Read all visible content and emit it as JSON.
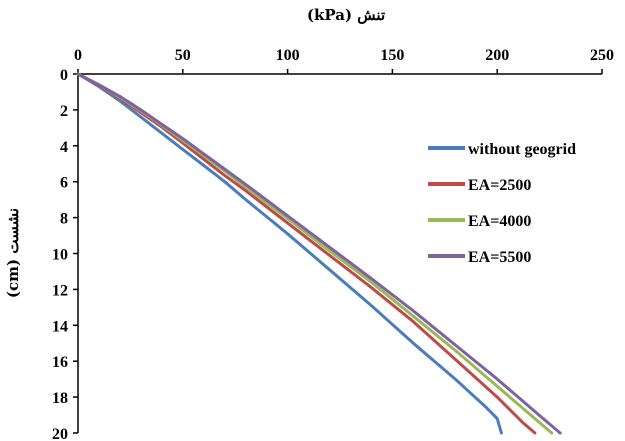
{
  "chart_data": {
    "type": "line",
    "xlabel": "تنش (kPa)",
    "ylabel": "نشست (cm)",
    "xlim": [
      0,
      250
    ],
    "ylim": [
      0,
      20
    ],
    "x_axis_position": "top",
    "y_axis_inverted": true,
    "xticks": [
      "0",
      "50",
      "100",
      "150",
      "200",
      "250"
    ],
    "yticks": [
      "0",
      "2",
      "4",
      "6",
      "8",
      "10",
      "12",
      "14",
      "16",
      "18",
      "20"
    ],
    "grid": false,
    "legend_position": "right",
    "series": [
      {
        "name": "without geogrid",
        "color": "#4a7ebb",
        "points": [
          [
            0,
            0
          ],
          [
            10,
            0.7
          ],
          [
            20,
            1.5
          ],
          [
            30,
            2.4
          ],
          [
            40,
            3.3
          ],
          [
            50,
            4.2
          ],
          [
            60,
            5.1
          ],
          [
            70,
            6.0
          ],
          [
            80,
            7.0
          ],
          [
            100,
            8.9
          ],
          [
            120,
            10.9
          ],
          [
            140,
            12.9
          ],
          [
            160,
            15.0
          ],
          [
            180,
            17.0
          ],
          [
            195,
            18.6
          ],
          [
            200,
            19.2
          ],
          [
            202,
            20.0
          ]
        ]
      },
      {
        "name": "EA=2500",
        "color": "#be4b48",
        "points": [
          [
            0,
            0
          ],
          [
            10,
            0.65
          ],
          [
            20,
            1.35
          ],
          [
            30,
            2.15
          ],
          [
            40,
            2.95
          ],
          [
            50,
            3.85
          ],
          [
            60,
            4.75
          ],
          [
            70,
            5.65
          ],
          [
            80,
            6.5
          ],
          [
            100,
            8.3
          ],
          [
            120,
            10.1
          ],
          [
            140,
            11.9
          ],
          [
            160,
            13.8
          ],
          [
            180,
            15.9
          ],
          [
            200,
            18.0
          ],
          [
            212,
            19.4
          ],
          [
            218,
            20.0
          ]
        ]
      },
      {
        "name": "EA=4000",
        "color": "#98b954",
        "points": [
          [
            0,
            0
          ],
          [
            10,
            0.6
          ],
          [
            20,
            1.3
          ],
          [
            30,
            2.05
          ],
          [
            40,
            2.85
          ],
          [
            50,
            3.7
          ],
          [
            60,
            4.55
          ],
          [
            70,
            5.4
          ],
          [
            80,
            6.3
          ],
          [
            100,
            8.05
          ],
          [
            120,
            9.85
          ],
          [
            140,
            11.6
          ],
          [
            160,
            13.5
          ],
          [
            180,
            15.4
          ],
          [
            200,
            17.4
          ],
          [
            218,
            19.2
          ],
          [
            226,
            20.0
          ]
        ]
      },
      {
        "name": "EA=5500",
        "color": "#7e62a1",
        "points": [
          [
            0,
            0
          ],
          [
            10,
            0.6
          ],
          [
            20,
            1.25
          ],
          [
            30,
            2.0
          ],
          [
            40,
            2.8
          ],
          [
            50,
            3.6
          ],
          [
            60,
            4.45
          ],
          [
            70,
            5.3
          ],
          [
            80,
            6.15
          ],
          [
            100,
            7.9
          ],
          [
            120,
            9.65
          ],
          [
            140,
            11.4
          ],
          [
            160,
            13.2
          ],
          [
            180,
            15.1
          ],
          [
            200,
            17.0
          ],
          [
            220,
            19.0
          ],
          [
            230,
            20.0
          ]
        ]
      }
    ]
  }
}
